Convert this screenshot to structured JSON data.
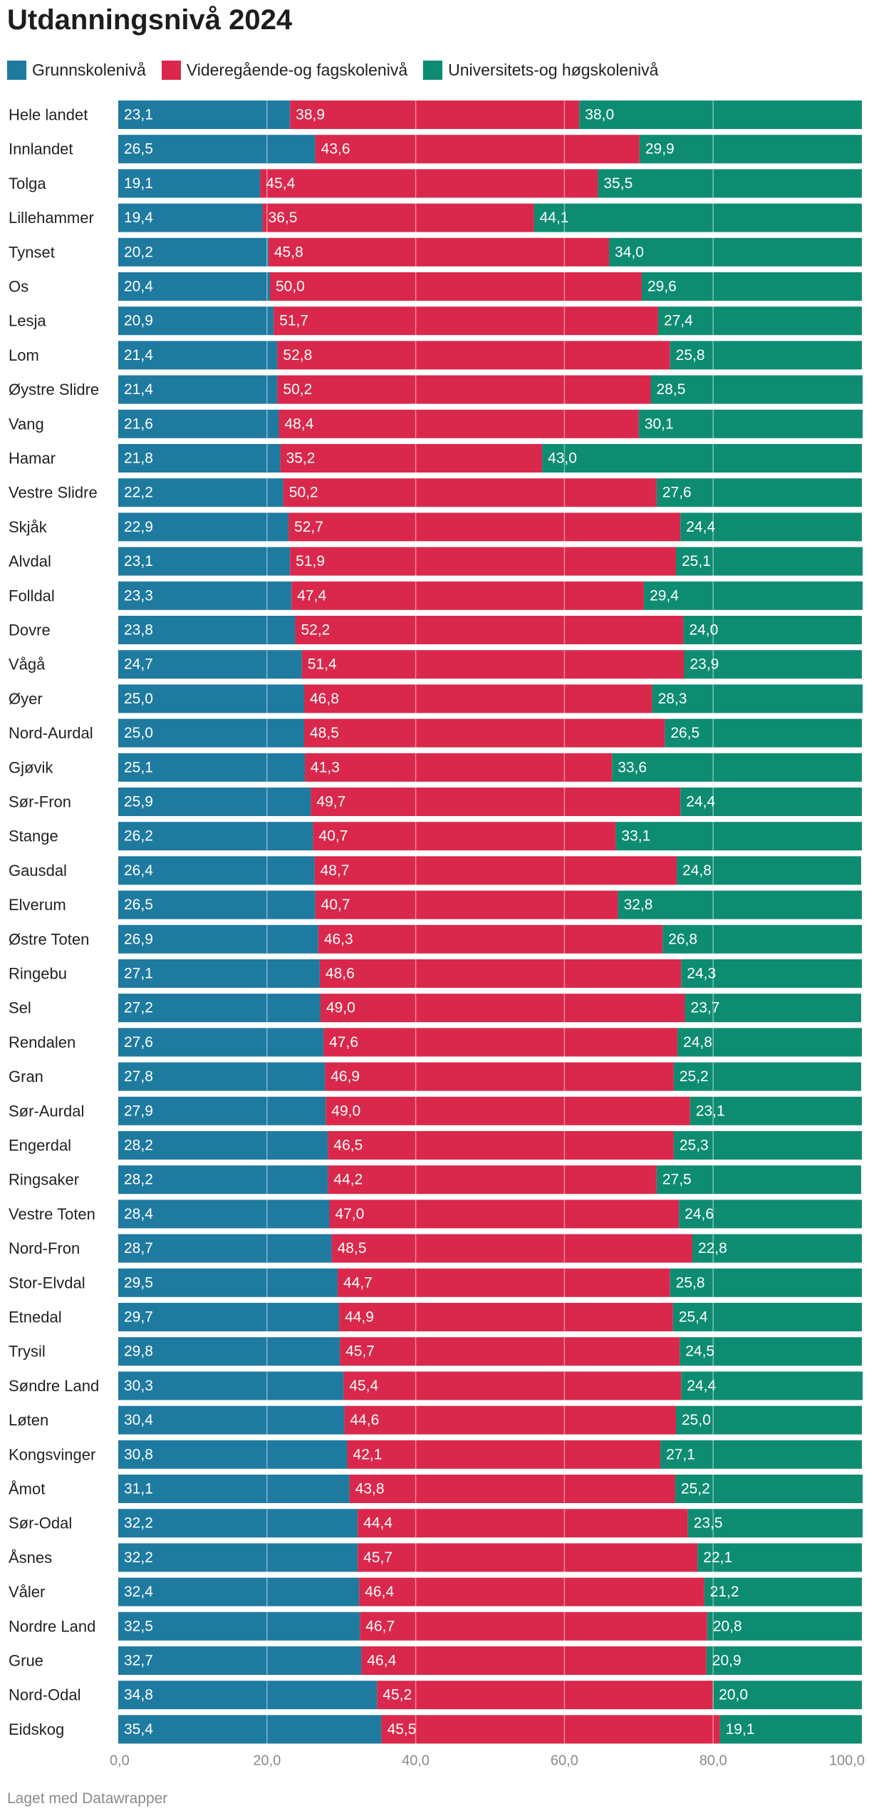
{
  "chart_data": {
    "type": "bar",
    "orientation": "horizontal",
    "stacked": true,
    "title": "Utdanningsnivå 2024",
    "xlabel": "",
    "ylabel": "",
    "xlim": [
      0,
      100
    ],
    "xticks": [
      "0,0",
      "20,0",
      "40,0",
      "60,0",
      "80,0",
      "100,0"
    ],
    "colors": [
      "#1f7aa0",
      "#d9284b",
      "#0e8c72"
    ],
    "series_names": [
      "Grunnskolenivå",
      "Videregående-og fagskolenivå",
      "Universitets-og høgskolenivå"
    ],
    "categories": [
      "Hele landet",
      "Innlandet",
      "Tolga",
      "Lillehammer",
      "Tynset",
      "Os",
      "Lesja",
      "Lom",
      "Øystre Slidre",
      "Vang",
      "Hamar",
      "Vestre Slidre",
      "Skjåk",
      "Alvdal",
      "Folldal",
      "Dovre",
      "Vågå",
      "Øyer",
      "Nord-Aurdal",
      "Gjøvik",
      "Sør-Fron",
      "Stange",
      "Gausdal",
      "Elverum",
      "Østre Toten",
      "Ringebu",
      "Sel",
      "Rendalen",
      "Gran",
      "Sør-Aurdal",
      "Engerdal",
      "Ringsaker",
      "Vestre Toten",
      "Nord-Fron",
      "Stor-Elvdal",
      "Etnedal",
      "Trysil",
      "Søndre Land",
      "Løten",
      "Kongsvinger",
      "Åmot",
      "Sør-Odal",
      "Åsnes",
      "Våler",
      "Nordre Land",
      "Grue",
      "Nord-Odal",
      "Eidskog"
    ],
    "series": [
      {
        "name": "Grunnskolenivå",
        "values": [
          23.1,
          26.5,
          19.1,
          19.4,
          20.2,
          20.4,
          20.9,
          21.4,
          21.4,
          21.6,
          21.8,
          22.2,
          22.9,
          23.1,
          23.3,
          23.8,
          24.7,
          25.0,
          25.0,
          25.1,
          25.9,
          26.2,
          26.4,
          26.5,
          26.9,
          27.1,
          27.2,
          27.6,
          27.8,
          27.9,
          28.2,
          28.2,
          28.4,
          28.7,
          29.5,
          29.7,
          29.8,
          30.3,
          30.4,
          30.8,
          31.1,
          32.2,
          32.2,
          32.4,
          32.5,
          32.7,
          34.8,
          35.4
        ]
      },
      {
        "name": "Videregående-og fagskolenivå",
        "values": [
          38.9,
          43.6,
          45.4,
          36.5,
          45.8,
          50.0,
          51.7,
          52.8,
          50.2,
          48.4,
          35.2,
          50.2,
          52.7,
          51.9,
          47.4,
          52.2,
          51.4,
          46.8,
          48.5,
          41.3,
          49.7,
          40.7,
          48.7,
          40.7,
          46.3,
          48.6,
          49.0,
          47.6,
          46.9,
          49.0,
          46.5,
          44.2,
          47.0,
          48.5,
          44.7,
          44.9,
          45.7,
          45.4,
          44.6,
          42.1,
          43.8,
          44.4,
          45.7,
          46.4,
          46.7,
          46.4,
          45.2,
          45.5
        ]
      },
      {
        "name": "Universitets-og høgskolenivå",
        "values": [
          38.0,
          29.9,
          35.5,
          44.1,
          34.0,
          29.6,
          27.4,
          25.8,
          28.5,
          30.1,
          43.0,
          27.6,
          24.4,
          25.1,
          29.4,
          24.0,
          23.9,
          28.3,
          26.5,
          33.6,
          24.4,
          33.1,
          24.8,
          32.8,
          26.8,
          24.3,
          23.7,
          24.8,
          25.2,
          23.1,
          25.3,
          27.5,
          24.6,
          22.8,
          25.8,
          25.4,
          24.5,
          24.4,
          25.0,
          27.1,
          25.2,
          23.5,
          22.1,
          21.2,
          20.8,
          20.9,
          20.0,
          19.1
        ]
      }
    ]
  },
  "footer": "Laget med Datawrapper"
}
